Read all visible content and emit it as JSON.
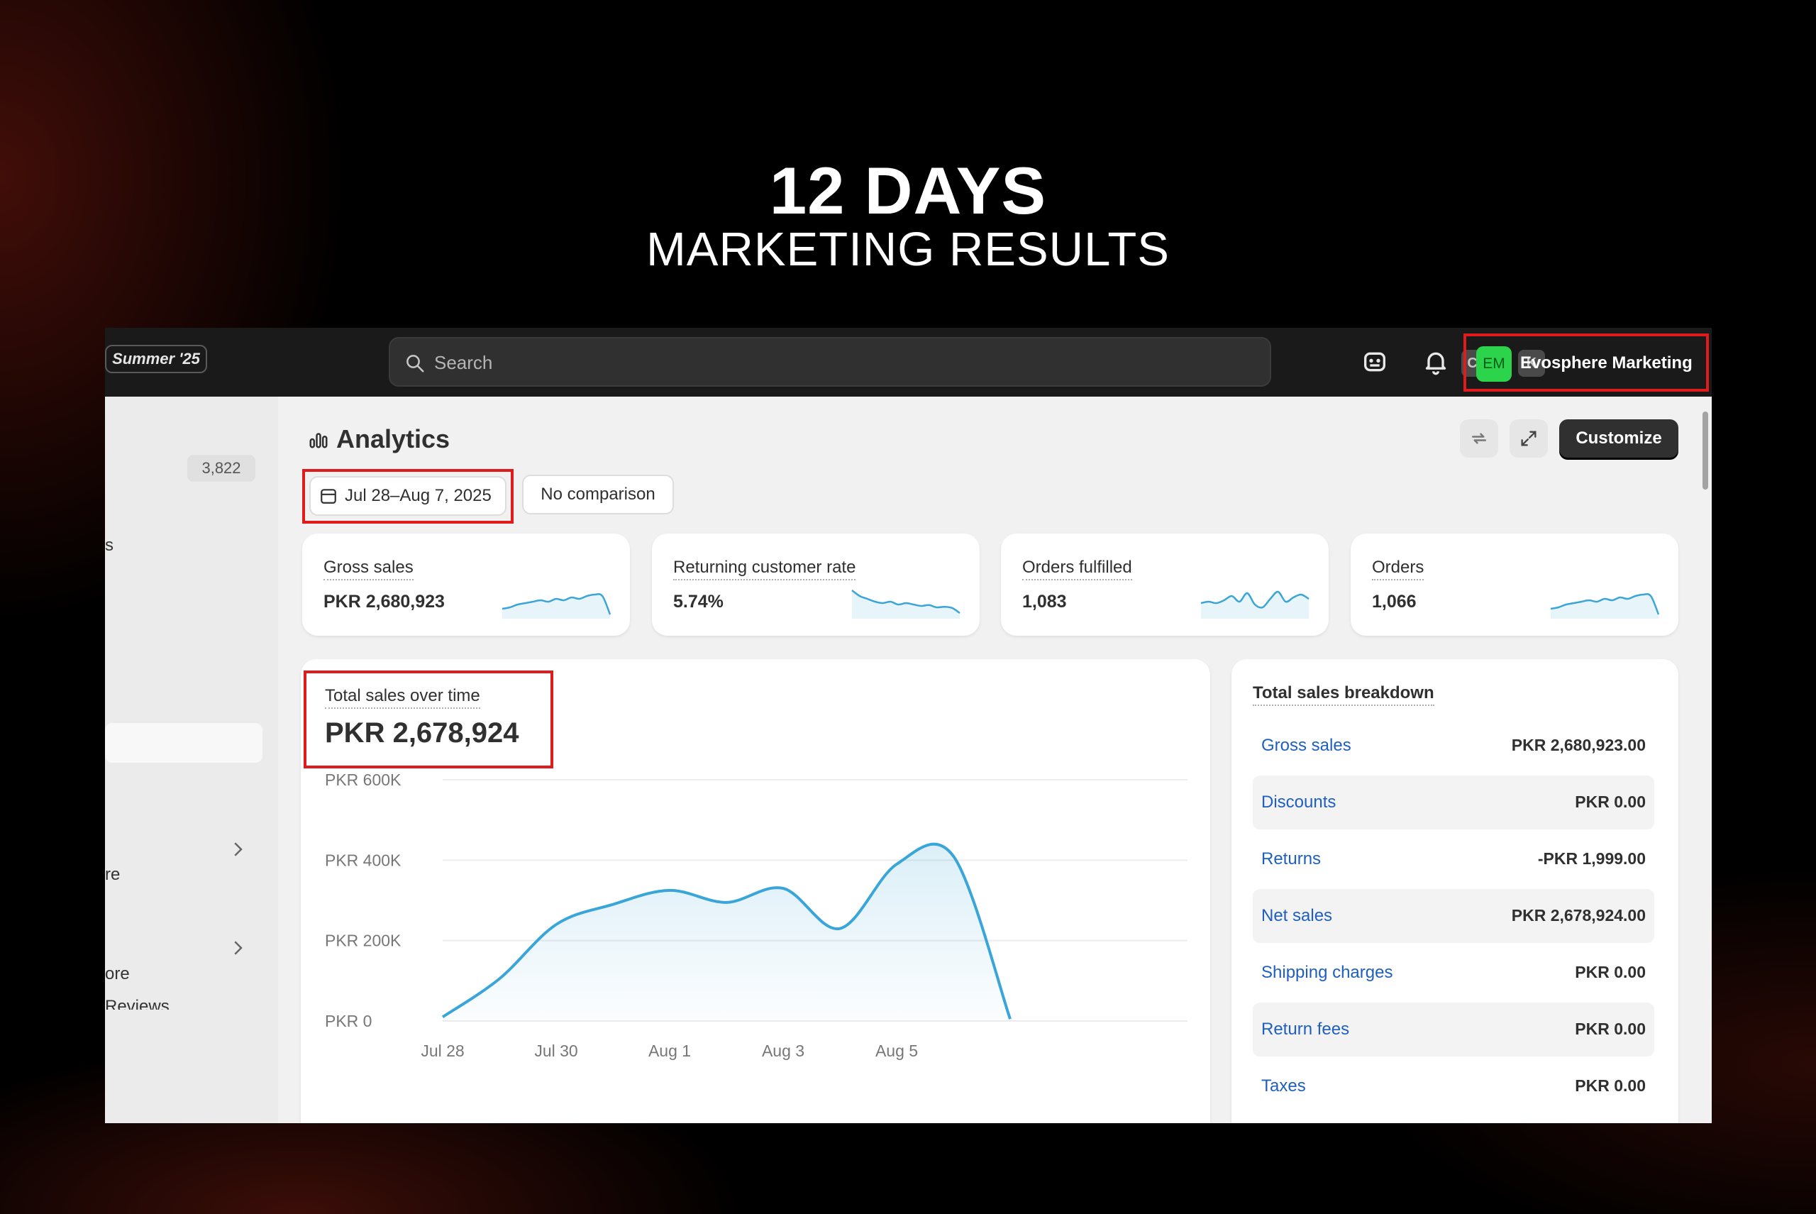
{
  "hero": {
    "title": "12 DAYS",
    "subtitle": "MARKETING RESULTS"
  },
  "topbar": {
    "season_badge": "Summer '25",
    "search_placeholder": "Search",
    "shortcut_ctrl": "CTRL",
    "shortcut_k": "K",
    "account_initials": "EM",
    "account_name": "Evosphere Marketing"
  },
  "sidebar": {
    "count_badge": "3,822",
    "fragments": [
      "s",
      "re",
      "ore",
      "Reviews"
    ]
  },
  "analytics": {
    "title": "Analytics",
    "customize_label": "Customize",
    "date_range": "Jul 28–Aug 7, 2025",
    "comparison": "No comparison"
  },
  "kpis": [
    {
      "label": "Gross sales",
      "value": "PKR 2,680,923",
      "spark": [
        0.25,
        0.3,
        0.4,
        0.45,
        0.5,
        0.55,
        0.5,
        0.6,
        0.55,
        0.65,
        0.6,
        0.7,
        0.75,
        0.7,
        0.05
      ]
    },
    {
      "label": "Returning customer rate",
      "value": "5.74%",
      "spark": [
        0.9,
        0.7,
        0.6,
        0.5,
        0.45,
        0.5,
        0.4,
        0.45,
        0.4,
        0.35,
        0.38,
        0.3,
        0.32,
        0.28,
        0.1
      ]
    },
    {
      "label": "Orders fulfilled",
      "value": "1,083",
      "spark": [
        0.45,
        0.5,
        0.45,
        0.55,
        0.7,
        0.5,
        0.8,
        0.4,
        0.3,
        0.6,
        0.85,
        0.5,
        0.65,
        0.75,
        0.6
      ]
    },
    {
      "label": "Orders",
      "value": "1,066",
      "spark": [
        0.25,
        0.3,
        0.4,
        0.45,
        0.5,
        0.55,
        0.5,
        0.6,
        0.55,
        0.65,
        0.6,
        0.7,
        0.75,
        0.7,
        0.05
      ]
    }
  ],
  "total_sales": {
    "label": "Total sales over time",
    "value": "PKR 2,678,924"
  },
  "chart_data": {
    "type": "area",
    "title": "Total sales over time",
    "x": [
      "Jul 28",
      "Jul 29",
      "Jul 30",
      "Jul 31",
      "Aug 1",
      "Aug 2",
      "Aug 3",
      "Aug 4",
      "Aug 5",
      "Aug 6",
      "Aug 7"
    ],
    "xticks": [
      "Jul 28",
      "Jul 30",
      "Aug 1",
      "Aug 3",
      "Aug 5"
    ],
    "series": [
      {
        "values": [
          10000,
          105000,
          240000,
          290000,
          325000,
          295000,
          330000,
          230000,
          390000,
          410000,
          5000
        ]
      }
    ],
    "yticks": [
      "PKR 0",
      "PKR 200K",
      "PKR 400K",
      "PKR 600K"
    ],
    "ylim": [
      0,
      600000
    ],
    "grid": true,
    "color": "#3aa5d8"
  },
  "breakdown": {
    "title": "Total sales breakdown",
    "rows": [
      {
        "name": "Gross sales",
        "value": "PKR 2,680,923.00"
      },
      {
        "name": "Discounts",
        "value": "PKR 0.00"
      },
      {
        "name": "Returns",
        "value": "-PKR 1,999.00"
      },
      {
        "name": "Net sales",
        "value": "PKR 2,678,924.00"
      },
      {
        "name": "Shipping charges",
        "value": "PKR 0.00"
      },
      {
        "name": "Return fees",
        "value": "PKR 0.00"
      },
      {
        "name": "Taxes",
        "value": "PKR 0.00"
      }
    ]
  },
  "colors": {
    "accent_blue": "#3aa5d8",
    "highlight_red": "#e01b1b",
    "avatar_green": "#2bd44a"
  }
}
